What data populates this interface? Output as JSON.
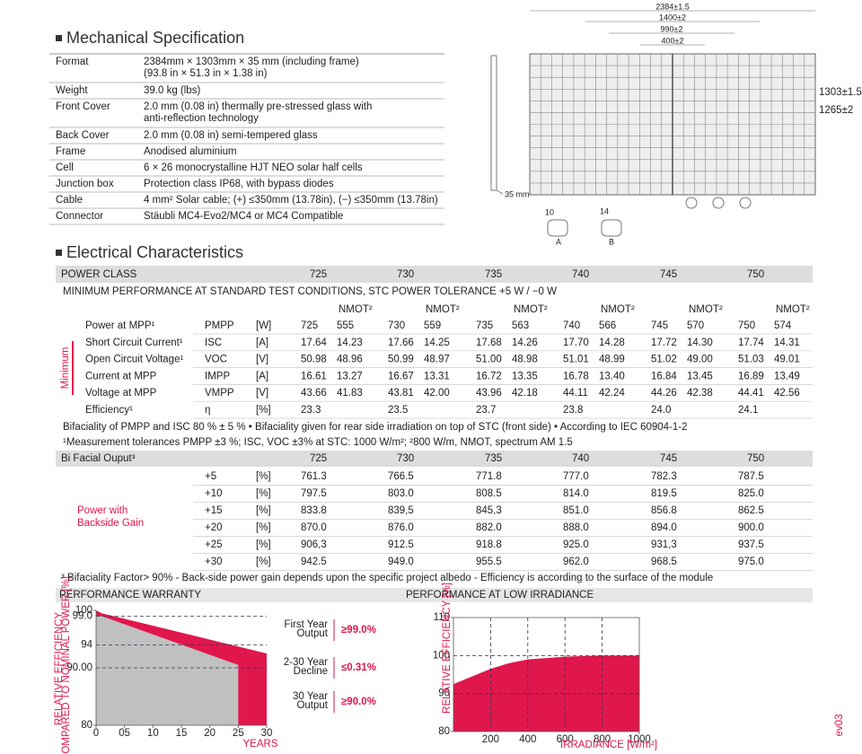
{
  "mechanical": {
    "title": "Mechanical Specification",
    "rows": [
      {
        "label": "Format",
        "value": [
          "2384mm × 1303mm × 35 mm (including frame)",
          "(93.8 in × 51.3 in × 1.38 in)"
        ]
      },
      {
        "label": "Weight",
        "value": [
          "39.0 kg (lbs)"
        ]
      },
      {
        "label": "Front Cover",
        "value": [
          "2.0 mm (0.08 in) thermally pre-stressed glass with",
          "anti-reflection technology"
        ]
      },
      {
        "label": "Back Cover",
        "value": [
          "2.0 mm (0.08 in) semi-tempered glass"
        ]
      },
      {
        "label": "Frame",
        "value": [
          "Anodised aluminium"
        ]
      },
      {
        "label": "Cell",
        "value": [
          "6 × 26 monocrystalline HJT NEO solar half cells"
        ]
      },
      {
        "label": "Junction box",
        "value": [
          "Protection class IP68, with bypass diodes"
        ]
      },
      {
        "label": "Cable",
        "value": [
          "4 mm² Solar cable; (+) ≤350mm (13.78in), (−) ≤350mm (13.78in)"
        ]
      },
      {
        "label": "Connector",
        "value": [
          "Stäubli MC4-Evo2/MC4 or MC4 Compatible"
        ]
      }
    ]
  },
  "diagram": {
    "dims": [
      "2384±1.5",
      "1400±2",
      "990±2",
      "400±2"
    ],
    "side_dims": [
      "1303±1.5",
      "1265±2"
    ],
    "frame": "35 mm",
    "detail_a": "10",
    "detail_b": "14",
    "label_a": "A",
    "label_b": "B"
  },
  "electrical": {
    "title": "Electrical Characteristics",
    "class_label": "POWER CLASS",
    "classes": [
      "725",
      "730",
      "735",
      "740",
      "745",
      "750"
    ],
    "subtitle": "MINIMUM PERFORMANCE AT STANDARD TEST CONDITIONS, STC POWER TOLERANCE +5 W / −0 W",
    "nmot": "NMOT²",
    "side_label": "Minimum",
    "rows": [
      {
        "label": "Power at MPP¹",
        "symbol": "PMPP",
        "unit": "[W]",
        "values": [
          "725",
          "555",
          "730",
          "559",
          "735",
          "563",
          "740",
          "566",
          "745",
          "570",
          "750",
          "574"
        ]
      },
      {
        "label": "Short Circuit Current¹",
        "symbol": "ISC",
        "unit": "[A]",
        "values": [
          "17.64",
          "14.23",
          "17.66",
          "14.25",
          "17.68",
          "14.26",
          "17.70",
          "14.28",
          "17.72",
          "14.30",
          "17.74",
          "14.31"
        ]
      },
      {
        "label": "Open Circuit Voltage¹",
        "symbol": "VOC",
        "unit": "[V]",
        "values": [
          "50.98",
          "48.96",
          "50.99",
          "48.97",
          "51.00",
          "48.98",
          "51.01",
          "48.99",
          "51.02",
          "49.00",
          "51.03",
          "49.01"
        ]
      },
      {
        "label": "Current at MPP",
        "symbol": "IMPP",
        "unit": "[A]",
        "values": [
          "16.61",
          "13.27",
          "16.67",
          "13.31",
          "16.72",
          "13.35",
          "16.78",
          "13.40",
          "16.84",
          "13.45",
          "16.89",
          "13.49"
        ]
      },
      {
        "label": "Voltage at MPP",
        "symbol": "VMPP",
        "unit": "[V]",
        "values": [
          "43.66",
          "41.83",
          "43.81",
          "42.00",
          "43.96",
          "42.18",
          "44.11",
          "42.24",
          "44.26",
          "42.38",
          "44.41",
          "42.56"
        ]
      },
      {
        "label": "Efficiency¹",
        "symbol": "η",
        "unit": "[%]",
        "values": [
          "23.3",
          "23.5",
          "23.7",
          "23.8",
          "24.0",
          "24.1"
        ]
      }
    ],
    "notes": [
      "Bifaciality of PMPP and ISC 80 % ± 5 %  •  Bifaciality given for rear side irradiation on top of STC (front side)  •  According to IEC 60904-1-2",
      "¹Measurement tolerances PMPP ±3 %; ISC, VOC ±3% at STC: 1000 W/m²; ²800 W/m, NMOT, spectrum AM 1.5"
    ]
  },
  "bifacial": {
    "title": "Bi Facial Ouput³",
    "side_label": [
      "Power with",
      "Backside Gain"
    ],
    "rows": [
      {
        "gain": "+5",
        "unit": "[%]",
        "values": [
          "761.3",
          "766.5",
          "771.8",
          "777.0",
          "782.3",
          "787.5"
        ]
      },
      {
        "gain": "+10",
        "unit": "[%]",
        "values": [
          "797.5",
          "803.0",
          "808.5",
          "814.0",
          "819.5",
          "825.0"
        ]
      },
      {
        "gain": "+15",
        "unit": "[%]",
        "values": [
          "833.8",
          "839,5",
          "845,3",
          "851.0",
          "856.8",
          "862.5"
        ]
      },
      {
        "gain": "+20",
        "unit": "[%]",
        "values": [
          "870.0",
          "876.0",
          "882.0",
          "888.0",
          "894.0",
          "900.0"
        ]
      },
      {
        "gain": "+25",
        "unit": "[%]",
        "values": [
          "906,3",
          "912.5",
          "918.8",
          "925.0",
          "931,3",
          "937.5"
        ]
      },
      {
        "gain": "+30",
        "unit": "[%]",
        "values": [
          "942.5",
          "949.0",
          "955.5",
          "962.0",
          "968.5",
          "975.0"
        ]
      }
    ],
    "footnote": "³ Bifaciality Factor> 90% - Back-side power gain depends upon the specific project albedo - Efficiency is according to the surface of the module"
  },
  "warranty": {
    "title": "PERFORMANCE WARRANTY",
    "type": "area",
    "ylabel": [
      "RELATIVE EFFICIENCY",
      "COMPARED TO NOMINAL POWER [%]"
    ],
    "xlabel": "YEARS",
    "xlim": [
      0,
      30
    ],
    "ylim": [
      80,
      100
    ],
    "xticks": [
      0,
      {
        "value": 5,
        "label": "05"
      },
      10,
      15,
      20,
      25,
      30
    ],
    "yticks": [
      80,
      {
        "value": 90,
        "label": "90.00"
      },
      94,
      {
        "value": 99,
        "label": "99.0"
      },
      100
    ],
    "series": [
      {
        "color": "#e0174c",
        "x": [
          0,
          1,
          30
        ],
        "values": [
          100,
          99.5,
          92.5
        ]
      },
      {
        "color": "#c0c0c0",
        "x": [
          0,
          1,
          25,
          25
        ],
        "values": [
          99,
          99,
          90.5,
          80
        ]
      }
    ],
    "stats": [
      {
        "label": [
          "First Year",
          "Output"
        ],
        "value": "≥99.0%"
      },
      {
        "label": [
          "2-30 Year",
          "Decline"
        ],
        "value": "≤0.31%"
      },
      {
        "label": [
          "30 Year",
          "Output"
        ],
        "value": "≥90.0%"
      }
    ]
  },
  "irradiance": {
    "title": "PERFORMANCE AT LOW IRRADIANCE",
    "type": "area",
    "ylabel": "RELATIVE EFFICIENCY [%]",
    "xlabel": "IRRADIANCE [W/m²]",
    "xlim": [
      0,
      1000
    ],
    "ylim": [
      80,
      110
    ],
    "xticks": [
      200,
      400,
      600,
      800,
      1000
    ],
    "yticks": [
      80,
      90,
      100,
      110
    ],
    "series": [
      {
        "color": "#e0174c",
        "x": [
          0,
          100,
          200,
          300,
          400,
          600,
          800,
          1000
        ],
        "values": [
          92.5,
          94.5,
          96.5,
          98,
          99,
          99.7,
          100,
          100
        ]
      }
    ]
  },
  "revision": "ev03"
}
